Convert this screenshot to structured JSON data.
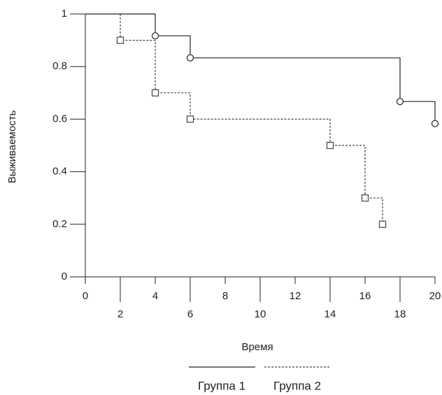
{
  "chart_data": {
    "type": "step",
    "xlabel": "Время",
    "ylabel": "Выживаемость",
    "xlim": [
      0,
      20
    ],
    "xticks": [
      0,
      2,
      4,
      6,
      8,
      10,
      12,
      14,
      16,
      18,
      20
    ],
    "ylim": [
      0,
      1
    ],
    "yticks": [
      0,
      0.2,
      0.4,
      0.6,
      0.8,
      1
    ],
    "series": [
      {
        "name": "Группа 1",
        "color": "#222222",
        "dash": "solid",
        "marker": "circle",
        "x": [
          0,
          4,
          6,
          18,
          20
        ],
        "values": [
          1,
          0.917,
          0.833,
          0.667,
          0.583
        ]
      },
      {
        "name": "Группа 2",
        "color": "#444444",
        "dash": "dashed",
        "marker": "square",
        "x": [
          0,
          2,
          4,
          6,
          14,
          16,
          17
        ],
        "values": [
          1,
          0.9,
          0.7,
          0.6,
          0.5,
          0.3,
          0.2
        ]
      }
    ]
  }
}
